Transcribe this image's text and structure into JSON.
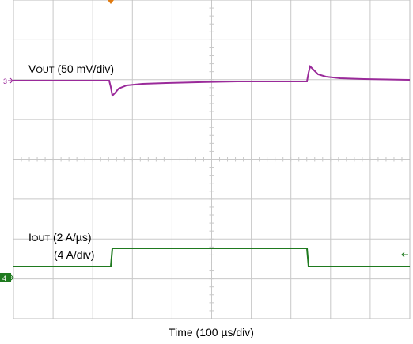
{
  "channel_markers": {
    "ch3": "3",
    "ch4": "4"
  },
  "vout_label": {
    "main": "V",
    "sub": "OUT",
    "rest": " (50 mV/div)"
  },
  "iout_label": {
    "main": "I",
    "sub": "OUT",
    "rest": " (2 A/µs)",
    "line2": "(4 A/div)"
  },
  "x_axis_label": "Time (100 µs/div)"
}
